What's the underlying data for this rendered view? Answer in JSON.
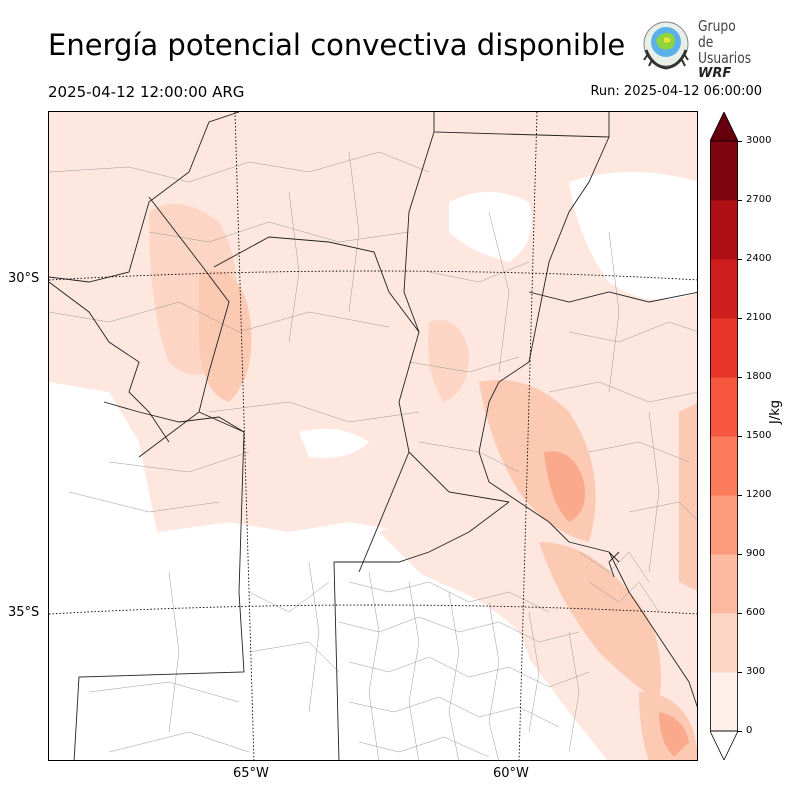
{
  "title": "Energía potencial convectiva disponible",
  "valid_time": "2025-04-12 12:00:00 ARG",
  "run_time": "Run: 2025-04-12 06:00:00",
  "logo": {
    "line1": "Grupo de",
    "line2": "Usuarios",
    "line3": "WRF",
    "icon": "wrf-globe-icon"
  },
  "map": {
    "lat_labels": [
      "30°S",
      "35°S"
    ],
    "lon_labels": [
      "65°W",
      "60°W"
    ],
    "province_fill": "#fee7df",
    "medium_fill": "#fcc9b3",
    "strong_fill": "#fba98c"
  },
  "colorbar": {
    "unit": "J/kg",
    "ticks": [
      "0",
      "300",
      "600",
      "900",
      "1200",
      "1500",
      "1800",
      "2100",
      "2400",
      "2700",
      "3000"
    ],
    "colors": [
      "#fff0eb",
      "#fdd7c6",
      "#fcbba1",
      "#fc9a7c",
      "#fb7b5b",
      "#f6573e",
      "#e8372a",
      "#d01d1e",
      "#ae1016",
      "#7f0610"
    ],
    "over_color": "#67000d",
    "under_color": "#ffffff"
  }
}
